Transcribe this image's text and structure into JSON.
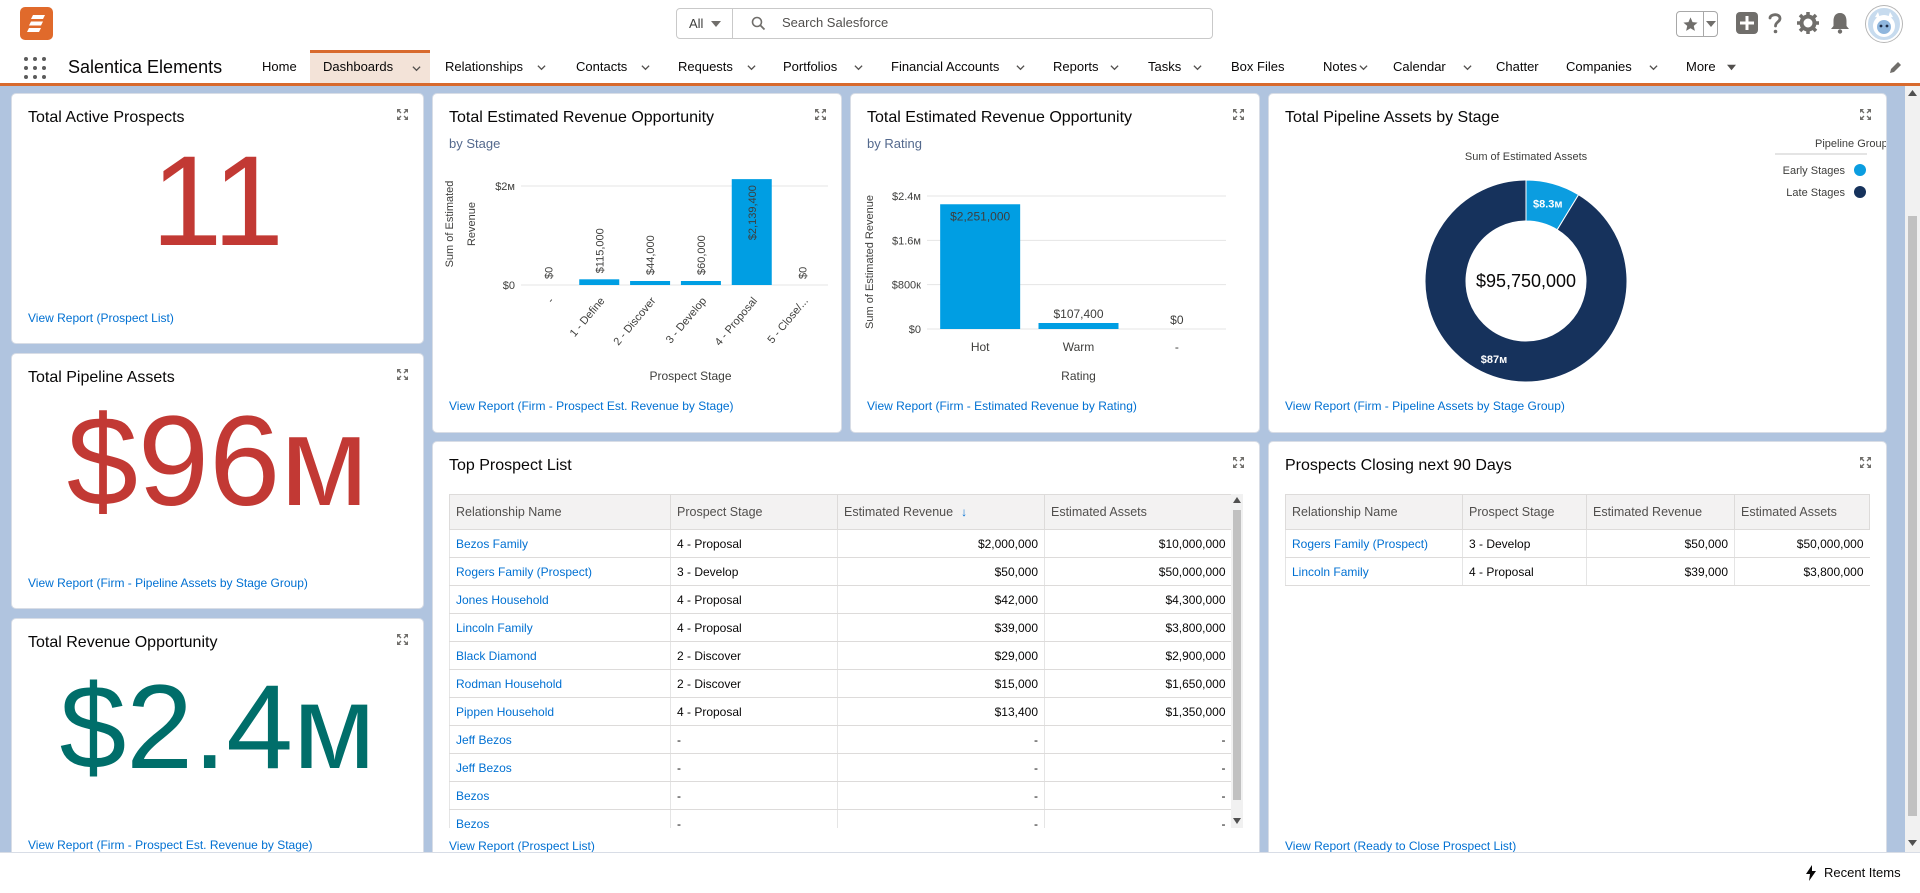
{
  "header": {
    "search_scope": "All",
    "search_placeholder": "Search Salesforce",
    "icons": [
      "favorites-star-icon",
      "chevron-down-icon",
      "add-icon",
      "help-icon",
      "setup-gear-icon",
      "notifications-bell-icon",
      "user-avatar"
    ]
  },
  "nav": {
    "app_name": "Salentica Elements",
    "items": [
      {
        "label": "Home",
        "has_menu": false
      },
      {
        "label": "Dashboards",
        "has_menu": true,
        "active": true
      },
      {
        "label": "Relationships",
        "has_menu": true
      },
      {
        "label": "Contacts",
        "has_menu": true
      },
      {
        "label": "Requests",
        "has_menu": true
      },
      {
        "label": "Portfolios",
        "has_menu": true
      },
      {
        "label": "Financial Accounts",
        "has_menu": true
      },
      {
        "label": "Reports",
        "has_menu": true
      },
      {
        "label": "Tasks",
        "has_menu": true
      },
      {
        "label": "Box Files",
        "has_menu": false
      },
      {
        "label": "Notes",
        "has_menu": true
      },
      {
        "label": "Calendar",
        "has_menu": true
      },
      {
        "label": "Chatter",
        "has_menu": false
      },
      {
        "label": "Companies",
        "has_menu": true
      },
      {
        "label": "More",
        "has_menu": true
      }
    ]
  },
  "cards": {
    "active_prospects": {
      "title": "Total Active Prospects",
      "value": "11",
      "link": "View Report (Prospect List)"
    },
    "pipeline_assets": {
      "title": "Total Pipeline Assets",
      "value": "$96м",
      "link": "View Report (Firm - Pipeline Assets by Stage Group)"
    },
    "revenue_opportunity": {
      "title": "Total Revenue Opportunity",
      "value": "$2.4м",
      "link": "View Report (Firm - Prospect Est. Revenue by Stage)"
    },
    "revenue_by_stage": {
      "title": "Total Estimated Revenue Opportunity",
      "subtitle": "by Stage",
      "link": "View Report (Firm - Prospect Est. Revenue by Stage)"
    },
    "revenue_by_rating": {
      "title": "Total Estimated Revenue Opportunity",
      "subtitle": "by Rating",
      "link": "View Report (Firm - Estimated Revenue by Rating)"
    },
    "assets_by_stage": {
      "title": "Total Pipeline Assets by Stage",
      "link": "View Report (Firm - Pipeline Assets by Stage Group)"
    },
    "top_prospects": {
      "title": "Top Prospect List",
      "link": "View Report (Prospect List)"
    },
    "closing_90": {
      "title": "Prospects Closing next 90 Days",
      "link": "View Report (Ready to Close Prospect List)"
    }
  },
  "chart_data": [
    {
      "type": "bar",
      "ylabel": "Sum of Estimated Revenue",
      "xlabel": "Prospect Stage",
      "categories": [
        "-",
        "1 - Define",
        "2 - Discover",
        "3 - Develop",
        "4 - Proposal",
        "5 - Close/..."
      ],
      "values": [
        0,
        115000,
        44000,
        60000,
        2139400,
        0
      ],
      "value_labels": [
        "$0",
        "$115,000",
        "$44,000",
        "$60,000",
        "$2,139,400",
        "$0"
      ],
      "y_ticks": [
        "$0",
        "$2м"
      ],
      "ylim": [
        0,
        2000000
      ],
      "bar_color": "#009ee3",
      "grid": true
    },
    {
      "type": "bar",
      "ylabel": "Sum of Estimated Revenue",
      "xlabel": "Rating",
      "categories": [
        "Hot",
        "Warm",
        "-"
      ],
      "values": [
        2251000,
        107400,
        0
      ],
      "value_labels": [
        "$2,251,000",
        "$107,400",
        "$0"
      ],
      "y_ticks": [
        "$0",
        "$800к",
        "$1.6м",
        "$2.4м"
      ],
      "ylim": [
        0,
        2400000
      ],
      "bar_color": "#009ee3",
      "grid": true
    },
    {
      "type": "pie",
      "variant": "donut",
      "title": "Sum of Estimated Assets",
      "center_label": "$95,750,000",
      "legend_title": "Pipeline Group",
      "legend_position": "top-right",
      "slices": [
        {
          "name": "Early Stages",
          "value": 8.3,
          "label": "$8.3м",
          "color": "#0b9de0"
        },
        {
          "name": "Late Stages",
          "value": 87,
          "label": "$87м",
          "color": "#16325c"
        }
      ]
    },
    {
      "type": "table",
      "columns": [
        "Relationship Name",
        "Prospect Stage",
        "Estimated Revenue",
        "Estimated Assets"
      ],
      "sorted_column": "Estimated Revenue",
      "rows": [
        [
          "Bezos Family",
          "4 - Proposal",
          "$2,000,000",
          "$10,000,000"
        ],
        [
          "Rogers Family (Prospect)",
          "3 - Develop",
          "$50,000",
          "$50,000,000"
        ],
        [
          "Jones Household",
          "4 - Proposal",
          "$42,000",
          "$4,300,000"
        ],
        [
          "Lincoln Family",
          "4 - Proposal",
          "$39,000",
          "$3,800,000"
        ],
        [
          "Black Diamond",
          "2 - Discover",
          "$29,000",
          "$2,900,000"
        ],
        [
          "Rodman Household",
          "2 - Discover",
          "$15,000",
          "$1,650,000"
        ],
        [
          "Pippen Household",
          "4 - Proposal",
          "$13,400",
          "$1,350,000"
        ],
        [
          "Jeff Bezos",
          "-",
          "-",
          "-"
        ],
        [
          "Jeff Bezos",
          "-",
          "-",
          "-"
        ],
        [
          "Bezos",
          "-",
          "-",
          "-"
        ],
        [
          "Bezos",
          "-",
          "-",
          "-"
        ]
      ]
    },
    {
      "type": "table",
      "columns": [
        "Relationship Name",
        "Prospect Stage",
        "Estimated Revenue",
        "Estimated Assets"
      ],
      "rows": [
        [
          "Rogers Family (Prospect)",
          "3 - Develop",
          "$50,000",
          "$50,000,000"
        ],
        [
          "Lincoln Family",
          "4 - Proposal",
          "$39,000",
          "$3,800,000"
        ]
      ]
    }
  ],
  "colors": {
    "metric_red": "#c23934",
    "metric_teal": "#006e6a",
    "link_blue": "#0070d2",
    "nav_accent": "#d86a2d",
    "bar_blue": "#009ee3",
    "dark_navy": "#16325c"
  },
  "footer": {
    "recent_items": "Recent Items"
  }
}
